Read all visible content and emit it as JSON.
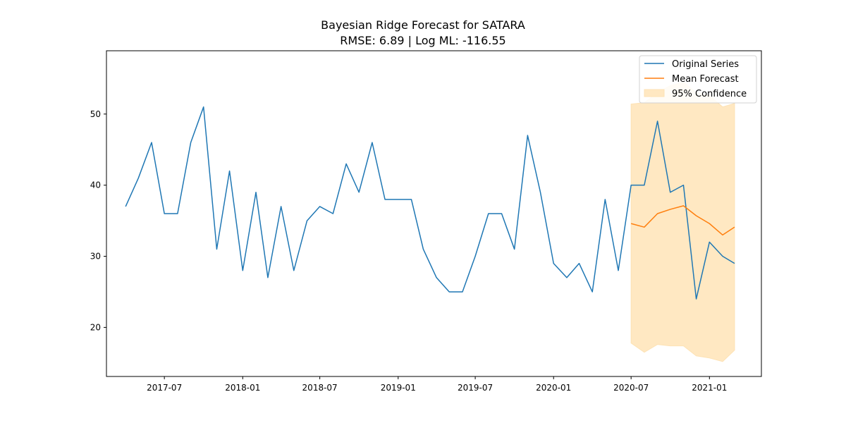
{
  "chart_data": {
    "type": "line",
    "title": "Bayesian Ridge Forecast for SATARA",
    "subtitle": "RMSE: 6.89 | Log ML: -116.55",
    "xlabel": "",
    "ylabel": "",
    "x_axis_type": "date",
    "xlim": [
      "2017-02-15",
      "2021-05-03"
    ],
    "ylim": [
      13.1,
      58.9
    ],
    "grid": false,
    "legend_position": "top-right",
    "x_ticks": [
      {
        "date": "2017-07-01",
        "label": "2017-07"
      },
      {
        "date": "2018-01-01",
        "label": "2018-01"
      },
      {
        "date": "2018-07-01",
        "label": "2018-07"
      },
      {
        "date": "2019-01-01",
        "label": "2019-01"
      },
      {
        "date": "2019-07-01",
        "label": "2019-07"
      },
      {
        "date": "2020-01-01",
        "label": "2020-01"
      },
      {
        "date": "2020-07-01",
        "label": "2020-07"
      },
      {
        "date": "2021-01-01",
        "label": "2021-01"
      }
    ],
    "y_ticks": [
      20,
      30,
      40,
      50
    ],
    "series": [
      {
        "name": "Original Series",
        "color": "#1f77b4",
        "kind": "line",
        "x": [
          "2017-04-01",
          "2017-05-01",
          "2017-06-01",
          "2017-07-01",
          "2017-08-01",
          "2017-09-01",
          "2017-10-01",
          "2017-11-01",
          "2017-12-01",
          "2018-01-01",
          "2018-02-01",
          "2018-03-01",
          "2018-04-01",
          "2018-05-01",
          "2018-06-01",
          "2018-07-01",
          "2018-08-01",
          "2018-09-01",
          "2018-10-01",
          "2018-11-01",
          "2018-12-01",
          "2019-01-01",
          "2019-02-01",
          "2019-03-01",
          "2019-04-01",
          "2019-05-01",
          "2019-06-01",
          "2019-07-01",
          "2019-08-01",
          "2019-09-01",
          "2019-10-01",
          "2019-11-01",
          "2019-12-01",
          "2020-01-01",
          "2020-02-01",
          "2020-03-01",
          "2020-04-01",
          "2020-05-01",
          "2020-06-01",
          "2020-07-01",
          "2020-08-01",
          "2020-09-01",
          "2020-10-01",
          "2020-11-01",
          "2020-12-01",
          "2021-01-01",
          "2021-02-01",
          "2021-03-01"
        ],
        "values": [
          37,
          41,
          46,
          36,
          36,
          46,
          51,
          31,
          42,
          28,
          39,
          27,
          37,
          28,
          35,
          37,
          36,
          43,
          39,
          46,
          38,
          38,
          38,
          31,
          27,
          25,
          25,
          30,
          36,
          36,
          31,
          47,
          39,
          29,
          27,
          29,
          25,
          38,
          28,
          40,
          40,
          49,
          39,
          40,
          24,
          32,
          30,
          29
        ]
      },
      {
        "name": "Mean Forecast",
        "color": "#ff7f0e",
        "kind": "line",
        "x": [
          "2020-07-01",
          "2020-08-01",
          "2020-09-01",
          "2020-10-01",
          "2020-11-01",
          "2020-12-01",
          "2021-01-01",
          "2021-02-01",
          "2021-03-01"
        ],
        "values": [
          34.6,
          34.1,
          36.0,
          36.6,
          37.1,
          35.7,
          34.6,
          33.0,
          34.1
        ]
      },
      {
        "name": "95% Confidence",
        "color": "#ffe8c2",
        "kind": "band",
        "x": [
          "2020-07-01",
          "2020-08-01",
          "2020-09-01",
          "2020-10-01",
          "2020-11-01",
          "2020-12-01",
          "2021-01-01",
          "2021-02-01",
          "2021-03-01"
        ],
        "lower": [
          17.8,
          16.5,
          17.6,
          17.4,
          17.4,
          16.0,
          15.7,
          15.2,
          16.8
        ],
        "upper": [
          51.4,
          51.6,
          53.0,
          54.0,
          54.5,
          53.0,
          52.6,
          51.0,
          51.5
        ]
      }
    ]
  }
}
